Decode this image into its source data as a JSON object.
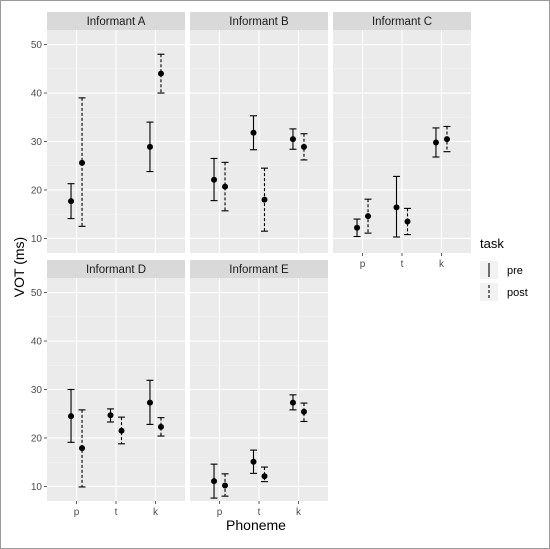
{
  "chart_data": {
    "type": "scatter",
    "subtype": "faceted point-range with error bars",
    "xlabel": "Phoneme",
    "ylabel": "VOT (ms)",
    "categories": [
      "p",
      "t",
      "k"
    ],
    "ylim": [
      7,
      53
    ],
    "yticks": [
      10,
      20,
      30,
      40,
      50
    ],
    "grid": true,
    "legend": {
      "title": "task",
      "position": "right",
      "entries": [
        {
          "name": "pre",
          "linetype": "solid"
        },
        {
          "name": "post",
          "linetype": "dashed"
        }
      ]
    },
    "panels": [
      {
        "title": "Informant A",
        "series": [
          {
            "name": "pre",
            "values": [
              17.7,
              null,
              28.9
            ],
            "lower": [
              14.1,
              null,
              23.8
            ],
            "upper": [
              21.3,
              null,
              34.0
            ]
          },
          {
            "name": "post",
            "values": [
              25.6,
              null,
              44.0
            ],
            "lower": [
              12.5,
              null,
              40.0
            ],
            "upper": [
              39.0,
              null,
              48.0
            ]
          }
        ]
      },
      {
        "title": "Informant B",
        "series": [
          {
            "name": "pre",
            "values": [
              22.1,
              31.8,
              30.5
            ],
            "lower": [
              17.8,
              28.3,
              28.4
            ],
            "upper": [
              26.5,
              35.3,
              32.6
            ]
          },
          {
            "name": "post",
            "values": [
              20.7,
              18.0,
              28.9
            ],
            "lower": [
              15.7,
              11.5,
              26.2
            ],
            "upper": [
              25.7,
              24.5,
              31.6
            ]
          }
        ]
      },
      {
        "title": "Informant C",
        "series": [
          {
            "name": "pre",
            "values": [
              12.2,
              16.4,
              29.8
            ],
            "lower": [
              10.4,
              10.3,
              26.8
            ],
            "upper": [
              14.0,
              22.8,
              32.8
            ]
          },
          {
            "name": "post",
            "values": [
              14.6,
              13.5,
              30.5
            ],
            "lower": [
              11.1,
              10.8,
              27.9
            ],
            "upper": [
              18.1,
              16.2,
              33.1
            ]
          }
        ]
      },
      {
        "title": "Informant D",
        "series": [
          {
            "name": "pre",
            "values": [
              24.5,
              24.7,
              27.3
            ],
            "lower": [
              19.1,
              23.3,
              22.8
            ],
            "upper": [
              30.0,
              26.0,
              31.9
            ]
          },
          {
            "name": "post",
            "values": [
              17.9,
              21.5,
              22.3
            ],
            "lower": [
              9.9,
              18.8,
              20.4
            ],
            "upper": [
              25.8,
              24.3,
              24.2
            ]
          }
        ]
      },
      {
        "title": "Informant E",
        "series": [
          {
            "name": "pre",
            "values": [
              11.1,
              15.1,
              27.3
            ],
            "lower": [
              7.6,
              12.7,
              25.8
            ],
            "upper": [
              14.6,
              17.5,
              28.9
            ]
          },
          {
            "name": "post",
            "values": [
              10.2,
              12.1,
              25.4
            ],
            "lower": [
              8.0,
              11.0,
              23.4
            ],
            "upper": [
              12.6,
              14.0,
              27.2
            ]
          }
        ]
      }
    ]
  }
}
